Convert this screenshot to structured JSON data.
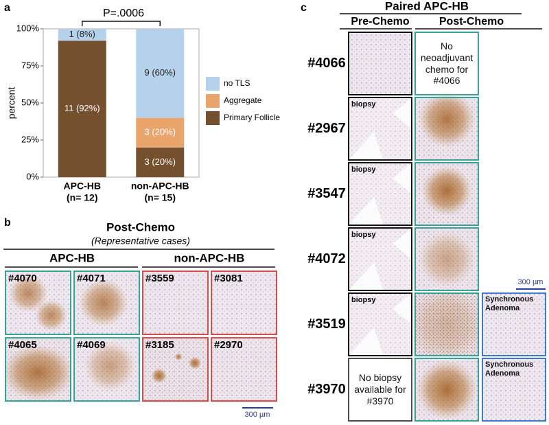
{
  "chart_data": {
    "type": "bar",
    "stacked": true,
    "panel_label": "a",
    "annotation": "P=.0006",
    "categories": [
      "APC-HB",
      "non-APC-HB"
    ],
    "category_notes": [
      "(n= 12)",
      "(n= 15)"
    ],
    "ylabel": "percent",
    "series": [
      {
        "name": "Primary Follicle",
        "color": "#74502f",
        "values": [
          92,
          20
        ],
        "value_labels": [
          "11 (92%)",
          "3 (20%)"
        ]
      },
      {
        "name": "Aggregate",
        "color": "#e9a56b",
        "values": [
          0,
          20
        ],
        "value_labels": [
          null,
          "3 (20%)"
        ]
      },
      {
        "name": "no TLS",
        "color": "#b6d2eb",
        "values": [
          8,
          60
        ],
        "value_labels": [
          "1 (8%)",
          "9 (60%)"
        ]
      }
    ],
    "ylim": [
      0,
      100
    ],
    "yticks": [
      {
        "value": 0,
        "label": "0%"
      },
      {
        "value": 25,
        "label": "25%"
      },
      {
        "value": 50,
        "label": "50%"
      },
      {
        "value": 75,
        "label": "75%"
      },
      {
        "value": 100,
        "label": "100%"
      }
    ],
    "grid": false,
    "legend": "right"
  },
  "panel_b": {
    "label": "b",
    "title": "Post-Chemo",
    "subtitle": "(Representative cases)",
    "groups": [
      {
        "name": "APC-HB",
        "cases": [
          "#4070",
          "#4071",
          "#4065",
          "#4069"
        ]
      },
      {
        "name": "non-APC-HB",
        "cases": [
          "#3559",
          "#3081",
          "#3185",
          "#2970"
        ]
      }
    ],
    "scale_bar": "300 µm"
  },
  "panel_c": {
    "label": "c",
    "title": "Paired APC-HB",
    "columns": [
      "Pre-Chemo",
      "Post-Chemo"
    ],
    "rows": [
      {
        "id": "#4066",
        "post_note": "No neoadjuvant chemo for #4066"
      },
      {
        "id": "#2967",
        "pre_label": "biopsy"
      },
      {
        "id": "#3547",
        "pre_label": "biopsy"
      },
      {
        "id": "#4072",
        "pre_label": "biopsy"
      },
      {
        "id": "#3519",
        "pre_label": "biopsy",
        "adjacent_label": "Synchronous Adenoma"
      },
      {
        "id": "#3970",
        "pre_note": "No biopsy available for #3970",
        "adjacent_label": "Synchronous Adenoma"
      }
    ],
    "scale_bar": "300 µm"
  }
}
